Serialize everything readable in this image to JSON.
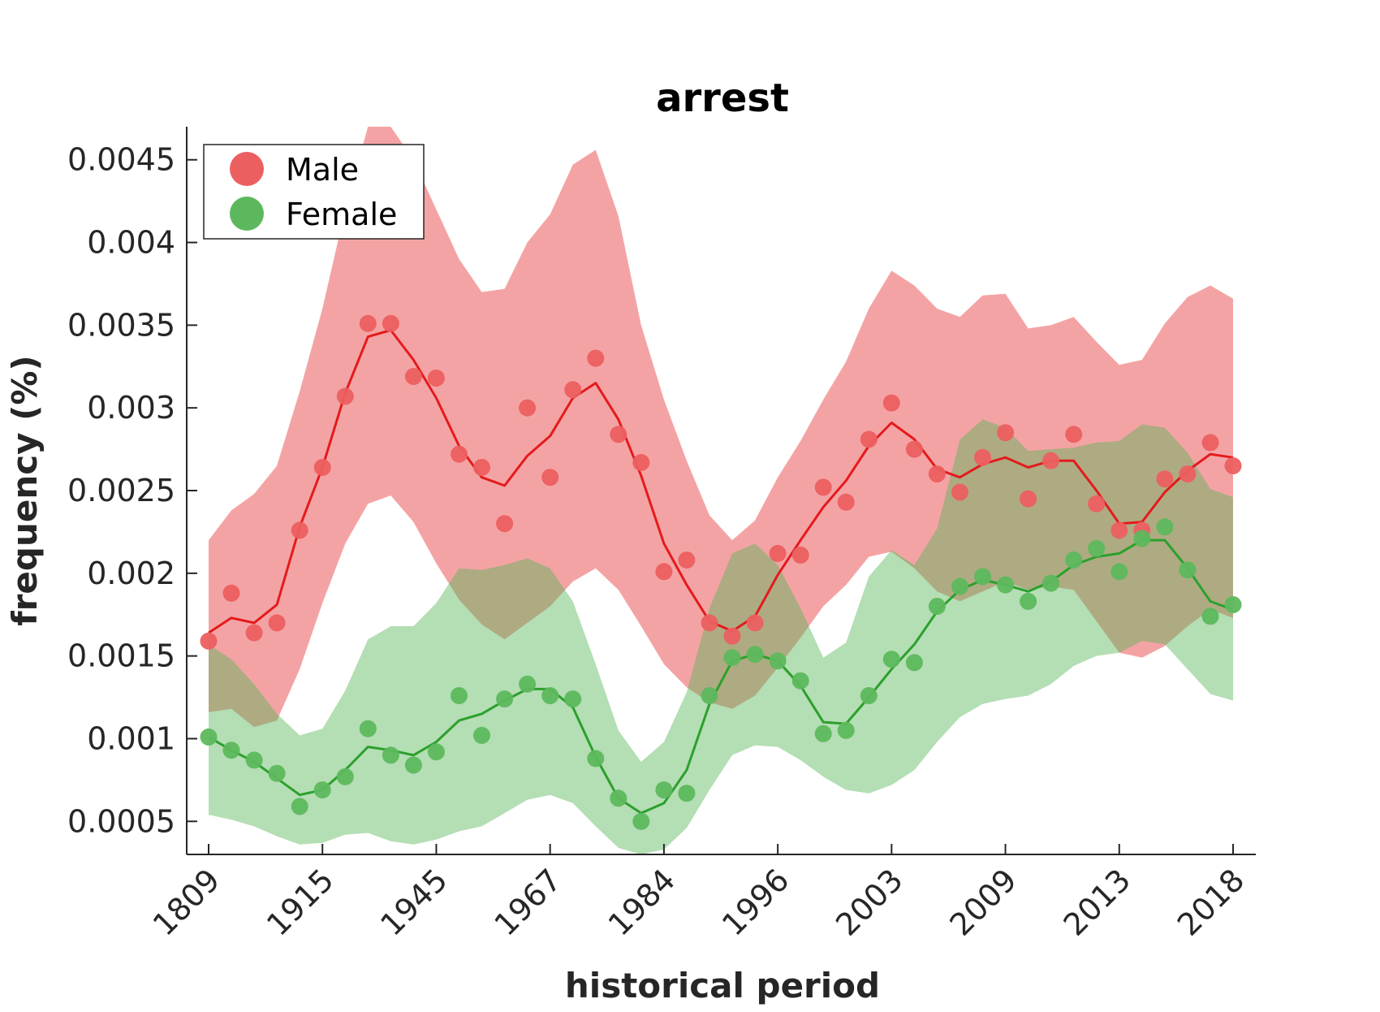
{
  "chart_data": {
    "type": "line",
    "title": "arrest",
    "xlabel": "historical period",
    "ylabel": "frequency (%)",
    "ylim": [
      0.0003,
      0.0047
    ],
    "yticks": [
      0.0005,
      0.001,
      0.0015,
      0.002,
      0.0025,
      0.003,
      0.0035,
      0.004,
      0.0045
    ],
    "ytick_labels": [
      "0.0005",
      "0.001",
      "0.0015",
      "0.002",
      "0.0025",
      "0.003",
      "0.0035",
      "0.004",
      "0.0045"
    ],
    "xtick_positions": [
      0,
      5,
      10,
      15,
      20,
      25,
      30,
      35,
      40,
      45
    ],
    "xtick_labels": [
      "1809",
      "1915",
      "1945",
      "1967",
      "1984",
      "1996",
      "2003",
      "2009",
      "2013",
      "2018"
    ],
    "legend": {
      "position": "top-left",
      "entries": [
        "Male",
        "Female"
      ]
    },
    "series": [
      {
        "name": "Male",
        "color": "#E41A1C",
        "marker_color": "#EC5F60",
        "band_color": "#E41A1C",
        "points": [
          0.00159,
          0.00188,
          0.00164,
          0.0017,
          0.00226,
          0.00264,
          0.00307,
          0.00351,
          0.00351,
          0.00319,
          0.00318,
          0.00272,
          0.00264,
          0.0023,
          0.003,
          0.00258,
          0.00311,
          0.0033,
          0.00284,
          0.00267,
          0.00201,
          0.00208,
          0.0017,
          0.00162,
          0.0017,
          0.00212,
          0.00211,
          0.00252,
          0.00243,
          0.00281,
          0.00303,
          0.00275,
          0.0026,
          0.00249,
          0.0027,
          0.00285,
          0.00245,
          0.00268,
          0.00284,
          0.00242,
          0.00226,
          0.00226,
          0.00257,
          0.0026,
          0.00279,
          0.00265
        ],
        "trend": [
          0.00164,
          0.00173,
          0.0017,
          0.00181,
          0.00228,
          0.00264,
          0.00309,
          0.00343,
          0.00347,
          0.00329,
          0.00306,
          0.00277,
          0.00258,
          0.00253,
          0.00271,
          0.00283,
          0.00306,
          0.00315,
          0.00293,
          0.00259,
          0.00218,
          0.00193,
          0.00171,
          0.00165,
          0.00174,
          0.00199,
          0.0022,
          0.0024,
          0.00256,
          0.00277,
          0.00291,
          0.00281,
          0.00263,
          0.00258,
          0.00266,
          0.0027,
          0.00264,
          0.00268,
          0.00268,
          0.0025,
          0.0023,
          0.00231,
          0.00249,
          0.00262,
          0.00272,
          0.0027
        ],
        "upper": [
          0.0022,
          0.00238,
          0.00248,
          0.00265,
          0.0031,
          0.0036,
          0.0042,
          0.0047,
          0.0047,
          0.0045,
          0.0042,
          0.0039,
          0.0037,
          0.00372,
          0.004,
          0.00417,
          0.00447,
          0.00456,
          0.00416,
          0.0035,
          0.00305,
          0.00268,
          0.00235,
          0.0022,
          0.00232,
          0.00258,
          0.0028,
          0.00305,
          0.00328,
          0.0036,
          0.00383,
          0.00374,
          0.0036,
          0.00355,
          0.00368,
          0.00369,
          0.00348,
          0.0035,
          0.00355,
          0.0034,
          0.00326,
          0.00329,
          0.00351,
          0.00367,
          0.00374,
          0.00366
        ],
        "lower": [
          0.00116,
          0.00118,
          0.00107,
          0.00111,
          0.00142,
          0.00182,
          0.00218,
          0.00242,
          0.00247,
          0.00231,
          0.00206,
          0.00184,
          0.00169,
          0.0016,
          0.0017,
          0.0018,
          0.00195,
          0.00203,
          0.0019,
          0.00168,
          0.00145,
          0.00131,
          0.00122,
          0.00118,
          0.00126,
          0.00143,
          0.00161,
          0.0018,
          0.00193,
          0.0021,
          0.00213,
          0.00203,
          0.00189,
          0.00183,
          0.00189,
          0.00195,
          0.0019,
          0.00192,
          0.0019,
          0.00171,
          0.00152,
          0.00149,
          0.00156,
          0.00168,
          0.00178,
          0.00173
        ]
      },
      {
        "name": "Female",
        "color": "#2CA02C",
        "marker_color": "#5DB85D",
        "band_color": "#58B658",
        "points": [
          0.00101,
          0.00093,
          0.00087,
          0.00079,
          0.00059,
          0.00069,
          0.00077,
          0.00106,
          0.0009,
          0.00084,
          0.00092,
          0.00126,
          0.00102,
          0.00124,
          0.00133,
          0.00126,
          0.00124,
          0.00088,
          0.00064,
          0.0005,
          0.00069,
          0.00067,
          0.00126,
          0.00149,
          0.00151,
          0.00147,
          0.00135,
          0.00103,
          0.00105,
          0.00126,
          0.00148,
          0.00146,
          0.0018,
          0.00192,
          0.00198,
          0.00193,
          0.00183,
          0.00194,
          0.00208,
          0.00215,
          0.00201,
          0.00221,
          0.00228,
          0.00202,
          0.00174,
          0.00181
        ],
        "trend": [
          0.00101,
          0.00093,
          0.00086,
          0.00076,
          0.00066,
          0.00069,
          0.00081,
          0.00095,
          0.00093,
          0.0009,
          0.00098,
          0.00111,
          0.00115,
          0.00123,
          0.0013,
          0.0013,
          0.00119,
          0.00089,
          0.00064,
          0.00055,
          0.00061,
          0.00081,
          0.00121,
          0.00147,
          0.00151,
          0.00147,
          0.00132,
          0.0011,
          0.00109,
          0.00125,
          0.00142,
          0.00157,
          0.00177,
          0.0019,
          0.00196,
          0.00193,
          0.00189,
          0.00195,
          0.00205,
          0.0021,
          0.00212,
          0.0022,
          0.0022,
          0.00203,
          0.00183,
          0.00178
        ],
        "upper": [
          0.00157,
          0.00148,
          0.00133,
          0.00115,
          0.00102,
          0.00106,
          0.00129,
          0.0016,
          0.00168,
          0.00168,
          0.00182,
          0.00203,
          0.00202,
          0.00205,
          0.00209,
          0.00203,
          0.00183,
          0.00145,
          0.00105,
          0.00086,
          0.00098,
          0.00128,
          0.00179,
          0.00212,
          0.00218,
          0.00205,
          0.00179,
          0.00149,
          0.00158,
          0.00198,
          0.00214,
          0.00205,
          0.00227,
          0.00281,
          0.00293,
          0.00288,
          0.00274,
          0.00275,
          0.00276,
          0.00279,
          0.0028,
          0.0029,
          0.00288,
          0.00273,
          0.00251,
          0.00246
        ],
        "lower": [
          0.00054,
          0.00051,
          0.00047,
          0.00041,
          0.00036,
          0.00037,
          0.00042,
          0.00043,
          0.00038,
          0.00036,
          0.00039,
          0.00044,
          0.00047,
          0.00055,
          0.00063,
          0.00066,
          0.00061,
          0.00047,
          0.00034,
          0.0003,
          0.00033,
          0.00046,
          0.00069,
          0.0009,
          0.00096,
          0.00095,
          0.00087,
          0.00077,
          0.00069,
          0.00067,
          0.00072,
          0.00081,
          0.00098,
          0.00113,
          0.00121,
          0.00124,
          0.00126,
          0.00133,
          0.00144,
          0.0015,
          0.00152,
          0.00159,
          0.00157,
          0.00142,
          0.00127,
          0.00123
        ]
      }
    ]
  }
}
